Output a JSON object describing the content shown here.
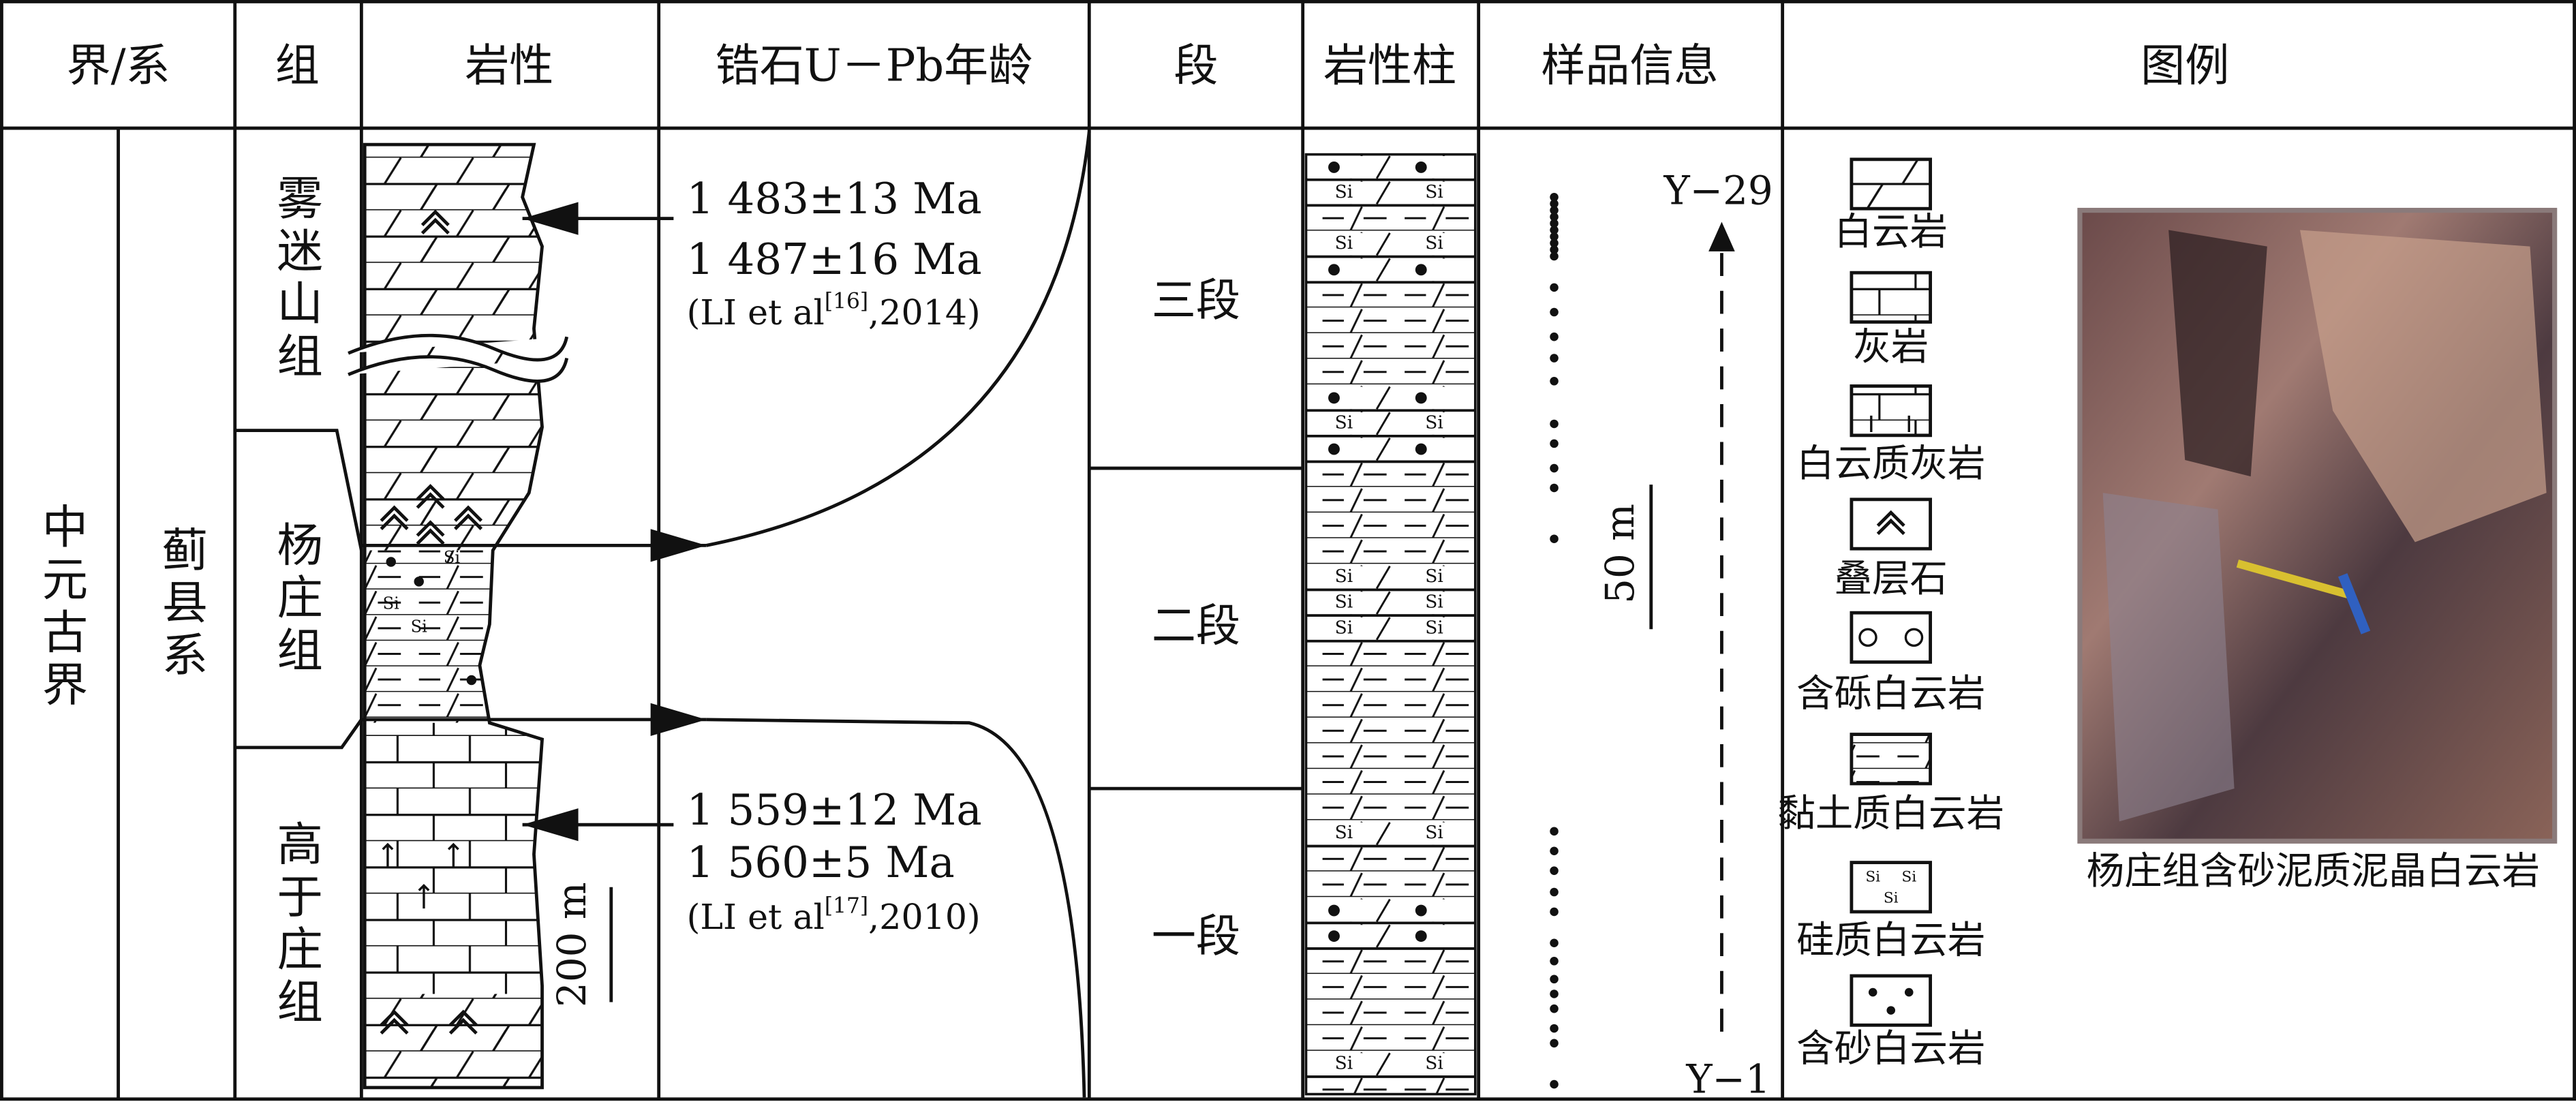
{
  "header": {
    "columns": [
      "界/系",
      "组",
      "岩性",
      "锆石U－Pb年龄",
      "段",
      "岩性柱",
      "样品信息",
      "图例"
    ]
  },
  "stratigraphy": {
    "erathem": "中元古界",
    "system": "蓟县系",
    "formations": [
      "雾迷山组",
      "杨庄组",
      "高于庄组"
    ],
    "members": [
      "三段",
      "二段",
      "一段"
    ],
    "lithology_scale": "200 m",
    "section_scale": "50 m"
  },
  "ages": [
    {
      "lines": [
        "1 483±13 Ma",
        "1 487±16 Ma"
      ],
      "ref": "(LI et al",
      "ref_note": "[16]",
      "ref_tail": ",2014)"
    },
    {
      "lines": [
        "1 559±12 Ma",
        "1 560±5 Ma"
      ],
      "ref": "(LI et al",
      "ref_note": "[17]",
      "ref_tail": ",2010)"
    }
  ],
  "samples": {
    "top": "Y−29",
    "bottom": "Y−1"
  },
  "symbols": {
    "si": "Si"
  },
  "legend": {
    "items": [
      "白云岩",
      "灰岩",
      "白云质灰岩",
      "叠层石",
      "含砾白云岩",
      "黏土质白云岩",
      "硅质白云岩",
      "含砂白云岩"
    ],
    "photo_caption": "杨庄组含砂泥质泥晶白云岩"
  }
}
